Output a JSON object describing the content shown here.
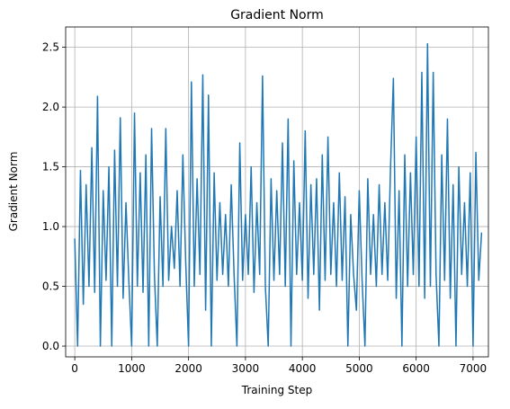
{
  "chart_data": {
    "type": "line",
    "title": "Gradient Norm",
    "x_label": "Training Step",
    "y_label": "Gradient Norm",
    "x": [
      0,
      50,
      100,
      150,
      200,
      250,
      300,
      350,
      400,
      450,
      500,
      550,
      600,
      650,
      700,
      750,
      800,
      850,
      900,
      950,
      1000,
      1050,
      1100,
      1150,
      1200,
      1250,
      1300,
      1350,
      1400,
      1450,
      1500,
      1550,
      1600,
      1650,
      1700,
      1750,
      1800,
      1850,
      1900,
      1950,
      2000,
      2050,
      2100,
      2150,
      2200,
      2250,
      2300,
      2350,
      2400,
      2450,
      2500,
      2550,
      2600,
      2650,
      2700,
      2750,
      2800,
      2850,
      2900,
      2950,
      3000,
      3050,
      3100,
      3150,
      3200,
      3250,
      3300,
      3350,
      3400,
      3450,
      3500,
      3550,
      3600,
      3650,
      3700,
      3750,
      3800,
      3850,
      3900,
      3950,
      4000,
      4050,
      4100,
      4150,
      4200,
      4250,
      4300,
      4350,
      4400,
      4450,
      4500,
      4550,
      4600,
      4650,
      4700,
      4750,
      4800,
      4850,
      4900,
      4950,
      5000,
      5050,
      5100,
      5150,
      5200,
      5250,
      5300,
      5350,
      5400,
      5450,
      5500,
      5550,
      5600,
      5650,
      5700,
      5750,
      5800,
      5850,
      5900,
      5950,
      6000,
      6050,
      6100,
      6150,
      6200,
      6250,
      6300,
      6350,
      6400,
      6450,
      6500,
      6550,
      6600,
      6650,
      6700,
      6750,
      6800,
      6850,
      6900,
      6950,
      7000,
      7050,
      7100,
      7150
    ],
    "series": [
      {
        "name": "Gradient Norm",
        "color": "#1f77b4",
        "values": [
          0.9,
          0.0,
          1.47,
          0.35,
          1.35,
          0.5,
          1.66,
          0.45,
          2.09,
          0.0,
          1.3,
          0.55,
          1.5,
          0.0,
          1.64,
          0.5,
          1.91,
          0.4,
          1.2,
          0.55,
          0.0,
          1.95,
          0.5,
          1.45,
          0.45,
          1.6,
          0.0,
          1.82,
          0.6,
          0.0,
          1.25,
          0.5,
          1.82,
          0.55,
          1.0,
          0.65,
          1.3,
          0.5,
          1.6,
          0.7,
          0.0,
          2.21,
          0.5,
          1.4,
          0.6,
          2.27,
          0.3,
          2.1,
          0.0,
          1.45,
          0.55,
          1.2,
          0.6,
          1.1,
          0.5,
          1.35,
          0.6,
          0.0,
          1.7,
          0.55,
          1.1,
          0.6,
          1.5,
          0.45,
          1.2,
          0.6,
          2.26,
          0.5,
          0.0,
          1.4,
          0.55,
          1.3,
          0.6,
          1.7,
          0.5,
          1.9,
          0.0,
          1.55,
          0.6,
          1.2,
          0.55,
          1.8,
          0.4,
          1.35,
          0.6,
          1.4,
          0.3,
          1.6,
          0.55,
          1.75,
          0.6,
          1.2,
          0.5,
          1.45,
          0.55,
          1.25,
          0.0,
          1.1,
          0.6,
          0.3,
          1.3,
          0.55,
          0.0,
          1.4,
          0.6,
          1.1,
          0.5,
          1.35,
          0.6,
          1.2,
          0.55,
          1.5,
          2.24,
          0.4,
          1.3,
          0.0,
          1.6,
          0.5,
          1.45,
          0.6,
          1.75,
          0.5,
          2.29,
          0.4,
          2.53,
          0.5,
          2.29,
          0.6,
          0.0,
          1.6,
          0.55,
          1.9,
          0.4,
          1.35,
          0.0,
          1.5,
          0.6,
          1.2,
          0.5,
          1.45,
          0.0,
          1.62,
          0.55,
          0.95
        ]
      }
    ],
    "xlim": [
      -160,
      7270
    ],
    "ylim": [
      -0.09,
      2.67
    ],
    "xticks": [
      0,
      1000,
      2000,
      3000,
      4000,
      5000,
      6000,
      7000
    ],
    "yticks": [
      {
        "value": 0,
        "label": "0.0"
      },
      0.5,
      {
        "value": 1,
        "label": "1.0"
      },
      1.5,
      {
        "value": 2,
        "label": "2.0"
      },
      2.5
    ],
    "grid": true
  }
}
